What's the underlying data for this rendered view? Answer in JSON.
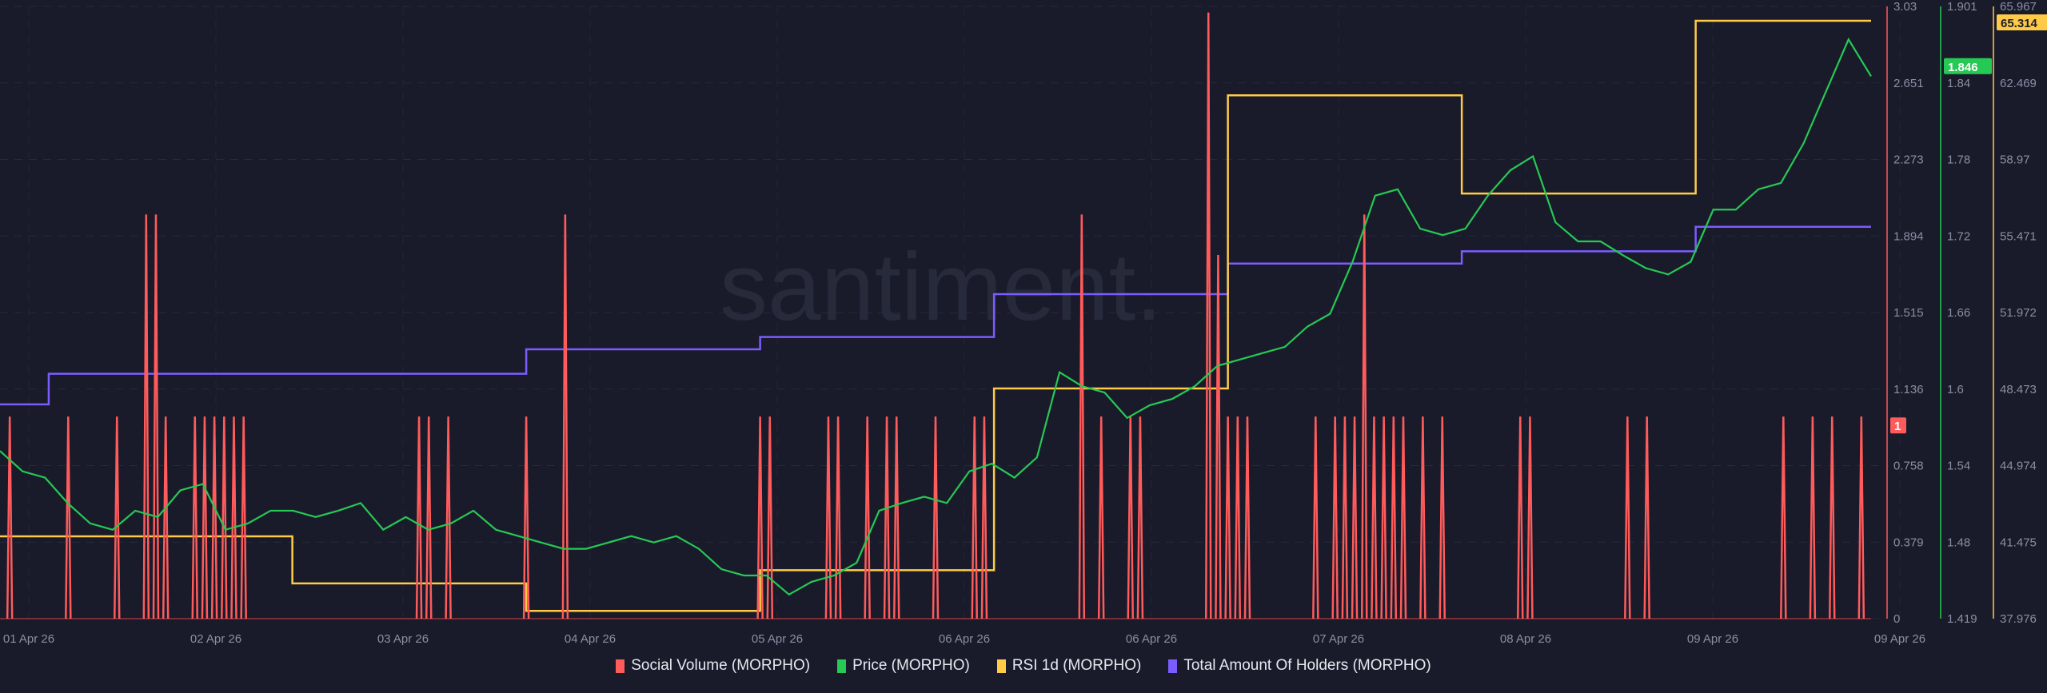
{
  "watermark": "santiment.",
  "chart_data": {
    "type": "line",
    "x_ticks": [
      "01 Apr 26",
      "02 Apr 26",
      "03 Apr 26",
      "04 Apr 26",
      "05 Apr 26",
      "06 Apr 26",
      "06 Apr 26",
      "07 Apr 26",
      "08 Apr 26",
      "09 Apr 26",
      "09 Apr 26"
    ],
    "grid": true,
    "legend_placement": "bottom",
    "axes": {
      "social_volume": {
        "range": [
          0,
          3.03
        ],
        "ticks": [
          "3.03",
          "2.651",
          "2.273",
          "1.894",
          "1.515",
          "1.136",
          "0.758",
          "0.379",
          "0"
        ],
        "color": "#ff5b5b"
      },
      "price": {
        "range": [
          1.419,
          1.901
        ],
        "ticks": [
          "1.901",
          "1.84",
          "1.78",
          "1.72",
          "1.66",
          "1.6",
          "1.54",
          "1.48",
          "1.419"
        ],
        "color": "#26c953"
      },
      "rsi": {
        "range": [
          37.976,
          65.967
        ],
        "ticks": [
          "65.967",
          "62.469",
          "58.97",
          "55.471",
          "51.972",
          "48.473",
          "44.974",
          "41.475",
          "37.976"
        ],
        "color": "#ffcb47"
      }
    },
    "series": [
      {
        "name": "Social Volume (MORPHO)",
        "color": "#ff5b5b",
        "axis": "social_volume",
        "hours_total": 192,
        "spikes": [
          [
            1,
            1
          ],
          [
            7,
            1
          ],
          [
            12,
            1
          ],
          [
            15,
            2
          ],
          [
            16,
            2
          ],
          [
            17,
            1
          ],
          [
            20,
            1
          ],
          [
            21,
            1
          ],
          [
            22,
            1
          ],
          [
            23,
            1
          ],
          [
            24,
            1
          ],
          [
            25,
            1
          ],
          [
            43,
            1
          ],
          [
            44,
            1
          ],
          [
            46,
            1
          ],
          [
            54,
            1
          ],
          [
            58,
            2
          ],
          [
            78,
            1
          ],
          [
            79,
            1
          ],
          [
            85,
            1
          ],
          [
            86,
            1
          ],
          [
            89,
            1
          ],
          [
            91,
            1
          ],
          [
            92,
            1
          ],
          [
            96,
            1
          ],
          [
            100,
            1
          ],
          [
            101,
            1
          ],
          [
            111,
            2
          ],
          [
            113,
            1
          ],
          [
            116,
            1
          ],
          [
            117,
            1
          ],
          [
            124,
            3
          ],
          [
            125,
            1.8
          ],
          [
            126,
            1
          ],
          [
            127,
            1
          ],
          [
            128,
            1
          ],
          [
            135,
            1
          ],
          [
            137,
            1
          ],
          [
            138,
            1
          ],
          [
            139,
            1
          ],
          [
            140,
            2
          ],
          [
            141,
            1
          ],
          [
            142,
            1
          ],
          [
            143,
            1
          ],
          [
            144,
            1
          ],
          [
            146,
            1
          ],
          [
            148,
            1
          ],
          [
            156,
            1
          ],
          [
            157,
            1
          ],
          [
            167,
            1
          ],
          [
            169,
            1
          ],
          [
            183,
            1
          ],
          [
            186,
            1
          ],
          [
            188,
            1
          ],
          [
            191,
            1
          ]
        ],
        "last_value": "1"
      },
      {
        "name": "Price (MORPHO)",
        "color": "#26c953",
        "axis": "price",
        "values": [
          1.551,
          1.535,
          1.53,
          1.51,
          1.494,
          1.489,
          1.504,
          1.499,
          1.52,
          1.525,
          1.489,
          1.494,
          1.504,
          1.504,
          1.499,
          1.504,
          1.51,
          1.489,
          1.499,
          1.489,
          1.494,
          1.504,
          1.489,
          1.484,
          1.479,
          1.474,
          1.474,
          1.479,
          1.484,
          1.479,
          1.484,
          1.474,
          1.458,
          1.453,
          1.453,
          1.438,
          1.448,
          1.453,
          1.463,
          1.504,
          1.51,
          1.515,
          1.51,
          1.535,
          1.541,
          1.53,
          1.546,
          1.613,
          1.602,
          1.597,
          1.577,
          1.587,
          1.592,
          1.602,
          1.618,
          1.623,
          1.628,
          1.633,
          1.649,
          1.659,
          1.7,
          1.752,
          1.757,
          1.726,
          1.721,
          1.726,
          1.752,
          1.772,
          1.783,
          1.731,
          1.716,
          1.716,
          1.705,
          1.695,
          1.69,
          1.7,
          1.741,
          1.741,
          1.757,
          1.762,
          1.793,
          1.834,
          1.875,
          1.846
        ],
        "last_value": "1.846"
      },
      {
        "name": "RSI 1d (MORPHO)",
        "color": "#ffcb47",
        "axis": "rsi",
        "step": true,
        "steps": [
          [
            0,
            41.74
          ],
          [
            30,
            39.59
          ],
          [
            54,
            38.33
          ],
          [
            78,
            40.19
          ],
          [
            102,
            48.5
          ],
          [
            126,
            61.9
          ],
          [
            150,
            57.41
          ],
          [
            174,
            65.31
          ]
        ],
        "last_value": "65.314"
      },
      {
        "name": "Total Amount Of Holders (MORPHO)",
        "color": "#7b5cff",
        "axis": "hidden",
        "step": true,
        "relative_level_steps": [
          [
            0,
            0.35
          ],
          [
            5,
            0.4
          ],
          [
            54,
            0.44
          ],
          [
            78,
            0.46
          ],
          [
            102,
            0.53
          ],
          [
            126,
            0.58
          ],
          [
            150,
            0.6
          ],
          [
            174,
            0.64
          ]
        ]
      }
    ]
  }
}
